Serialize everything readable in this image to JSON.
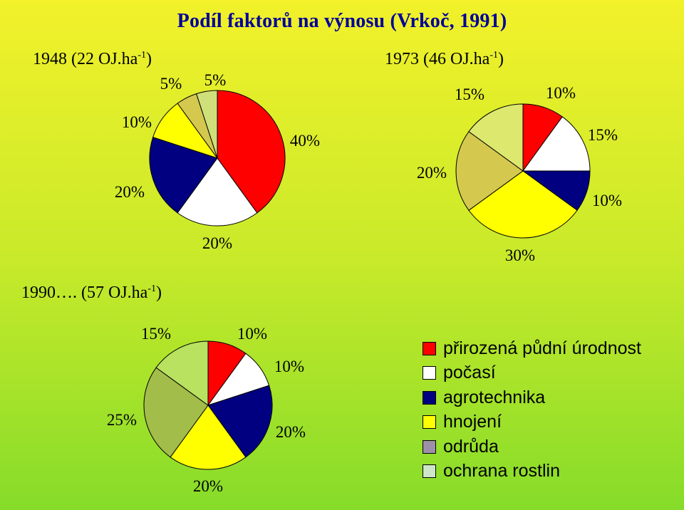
{
  "title": "Podíl faktorů na výnosu (Vrkoč, 1991)",
  "colors": {
    "prirozena": "#ff0000",
    "pocasi": "#ffffff",
    "agrotechnika": "#000080",
    "hnojeni": "#ffff00",
    "odruda": "#d4c94e",
    "ochrana_rostlin": "#cfe07a",
    "odruda_1990": "#a3bd4a",
    "ochrana_1990": "#b8e260"
  },
  "chart_data": [
    {
      "type": "pie",
      "title_prefix": "1948 (22 OJ.ha",
      "title_sup": "-1",
      "title_suffix": ")",
      "series": [
        {
          "category": "přirozená půdní úrodnost",
          "value": 40,
          "label": "40%",
          "color": "#ff0000"
        },
        {
          "category": "počasí",
          "value": 20,
          "label": "20%",
          "color": "#ffffff"
        },
        {
          "category": "agrotechnika",
          "value": 20,
          "label": "20%",
          "color": "#000080"
        },
        {
          "category": "hnojení",
          "value": 10,
          "label": "10%",
          "color": "#ffff00"
        },
        {
          "category": "odrůda",
          "value": 5,
          "label": "5%",
          "color": "#d4c94e"
        },
        {
          "category": "ochrana rostlin",
          "value": 5,
          "label": "5%",
          "color": "#cfe07a"
        }
      ]
    },
    {
      "type": "pie",
      "title_prefix": "1973 (46 OJ.ha",
      "title_sup": "-1",
      "title_suffix": ")",
      "series": [
        {
          "category": "přirozená půdní úrodnost",
          "value": 10,
          "label": "10%",
          "color": "#ff0000"
        },
        {
          "category": "počasí",
          "value": 15,
          "label": "15%",
          "color": "#ffffff"
        },
        {
          "category": "agrotechnika",
          "value": 10,
          "label": "10%",
          "color": "#000080"
        },
        {
          "category": "hnojení",
          "value": 30,
          "label": "30%",
          "color": "#ffff00"
        },
        {
          "category": "odrůda",
          "value": 20,
          "label": "20%",
          "color": "#d4c94e"
        },
        {
          "category": "ochrana rostlin",
          "value": 15,
          "label": "15%",
          "color": "#dde86e"
        }
      ]
    },
    {
      "type": "pie",
      "title_prefix": "1990…. (57 OJ.ha",
      "title_sup": "-1",
      "title_suffix": ")",
      "series": [
        {
          "category": "přirozená půdní úrodnost",
          "value": 10,
          "label": "10%",
          "color": "#ff0000"
        },
        {
          "category": "počasí",
          "value": 10,
          "label": "10%",
          "color": "#ffffff"
        },
        {
          "category": "agrotechnika",
          "value": 20,
          "label": "20%",
          "color": "#000080"
        },
        {
          "category": "hnojení",
          "value": 20,
          "label": "20%",
          "color": "#ffff00"
        },
        {
          "category": "odrůda",
          "value": 25,
          "label": "25%",
          "color": "#a3bd4a"
        },
        {
          "category": "ochrana rostlin",
          "value": 15,
          "label": "15%",
          "color": "#b8e260"
        }
      ]
    }
  ],
  "legend": [
    {
      "label": "přirozená půdní úrodnost",
      "color": "#ff0000"
    },
    {
      "label": "počasí",
      "color": "#ffffff"
    },
    {
      "label": "agrotechnika",
      "color": "#000080"
    },
    {
      "label": "hnojení",
      "color": "#ffff00"
    },
    {
      "label": "odrůda",
      "color": "#9e8fa8"
    },
    {
      "label": "ochrana rostlin",
      "color": "#cde6c8"
    }
  ]
}
